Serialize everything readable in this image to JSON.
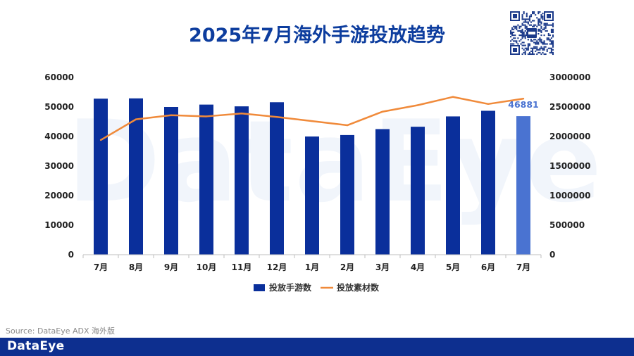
{
  "header": {
    "title": "2025年7月海外手游投放趋势"
  },
  "watermark": {
    "text": "DataEye"
  },
  "chart_data": {
    "type": "bar",
    "title": "2025年7月海外手游投放趋势",
    "categories": [
      "7月",
      "8月",
      "9月",
      "10月",
      "11月",
      "12月",
      "1月",
      "2月",
      "3月",
      "4月",
      "5月",
      "6月",
      "7月"
    ],
    "series": [
      {
        "name": "投放手游数",
        "type": "bar",
        "axis": "left",
        "values": [
          52800,
          52900,
          50000,
          50800,
          50200,
          51600,
          40000,
          40500,
          42500,
          43300,
          46800,
          48700,
          46881
        ],
        "color": "#0a2f9b",
        "highlight_color": "#4a73d1"
      },
      {
        "name": "投放素材数",
        "type": "line",
        "axis": "right",
        "values": [
          1940000,
          2290000,
          2360000,
          2340000,
          2390000,
          2330000,
          2260000,
          2190000,
          2420000,
          2530000,
          2670000,
          2550000,
          2640000
        ],
        "color": "#f08a3a"
      }
    ],
    "y_left": {
      "ylim": [
        0,
        60000
      ],
      "ticks": [
        "0",
        "10000",
        "20000",
        "30000",
        "40000",
        "50000",
        "60000"
      ]
    },
    "y_right": {
      "ylim": [
        0,
        3000000
      ],
      "ticks": [
        "0",
        "500000",
        "1000000",
        "1500000",
        "2000000",
        "2500000",
        "3000000"
      ]
    },
    "annotation": {
      "index": 12,
      "text": "46881",
      "color": "#4a73d1"
    },
    "legend": {
      "position": "bottom"
    }
  },
  "footer": {
    "source": "Source: DataEye ADX 海外版",
    "brand": "DataEye"
  },
  "colors": {
    "title": "#0d3d9e",
    "footer_bg": "#0d2f8f"
  }
}
